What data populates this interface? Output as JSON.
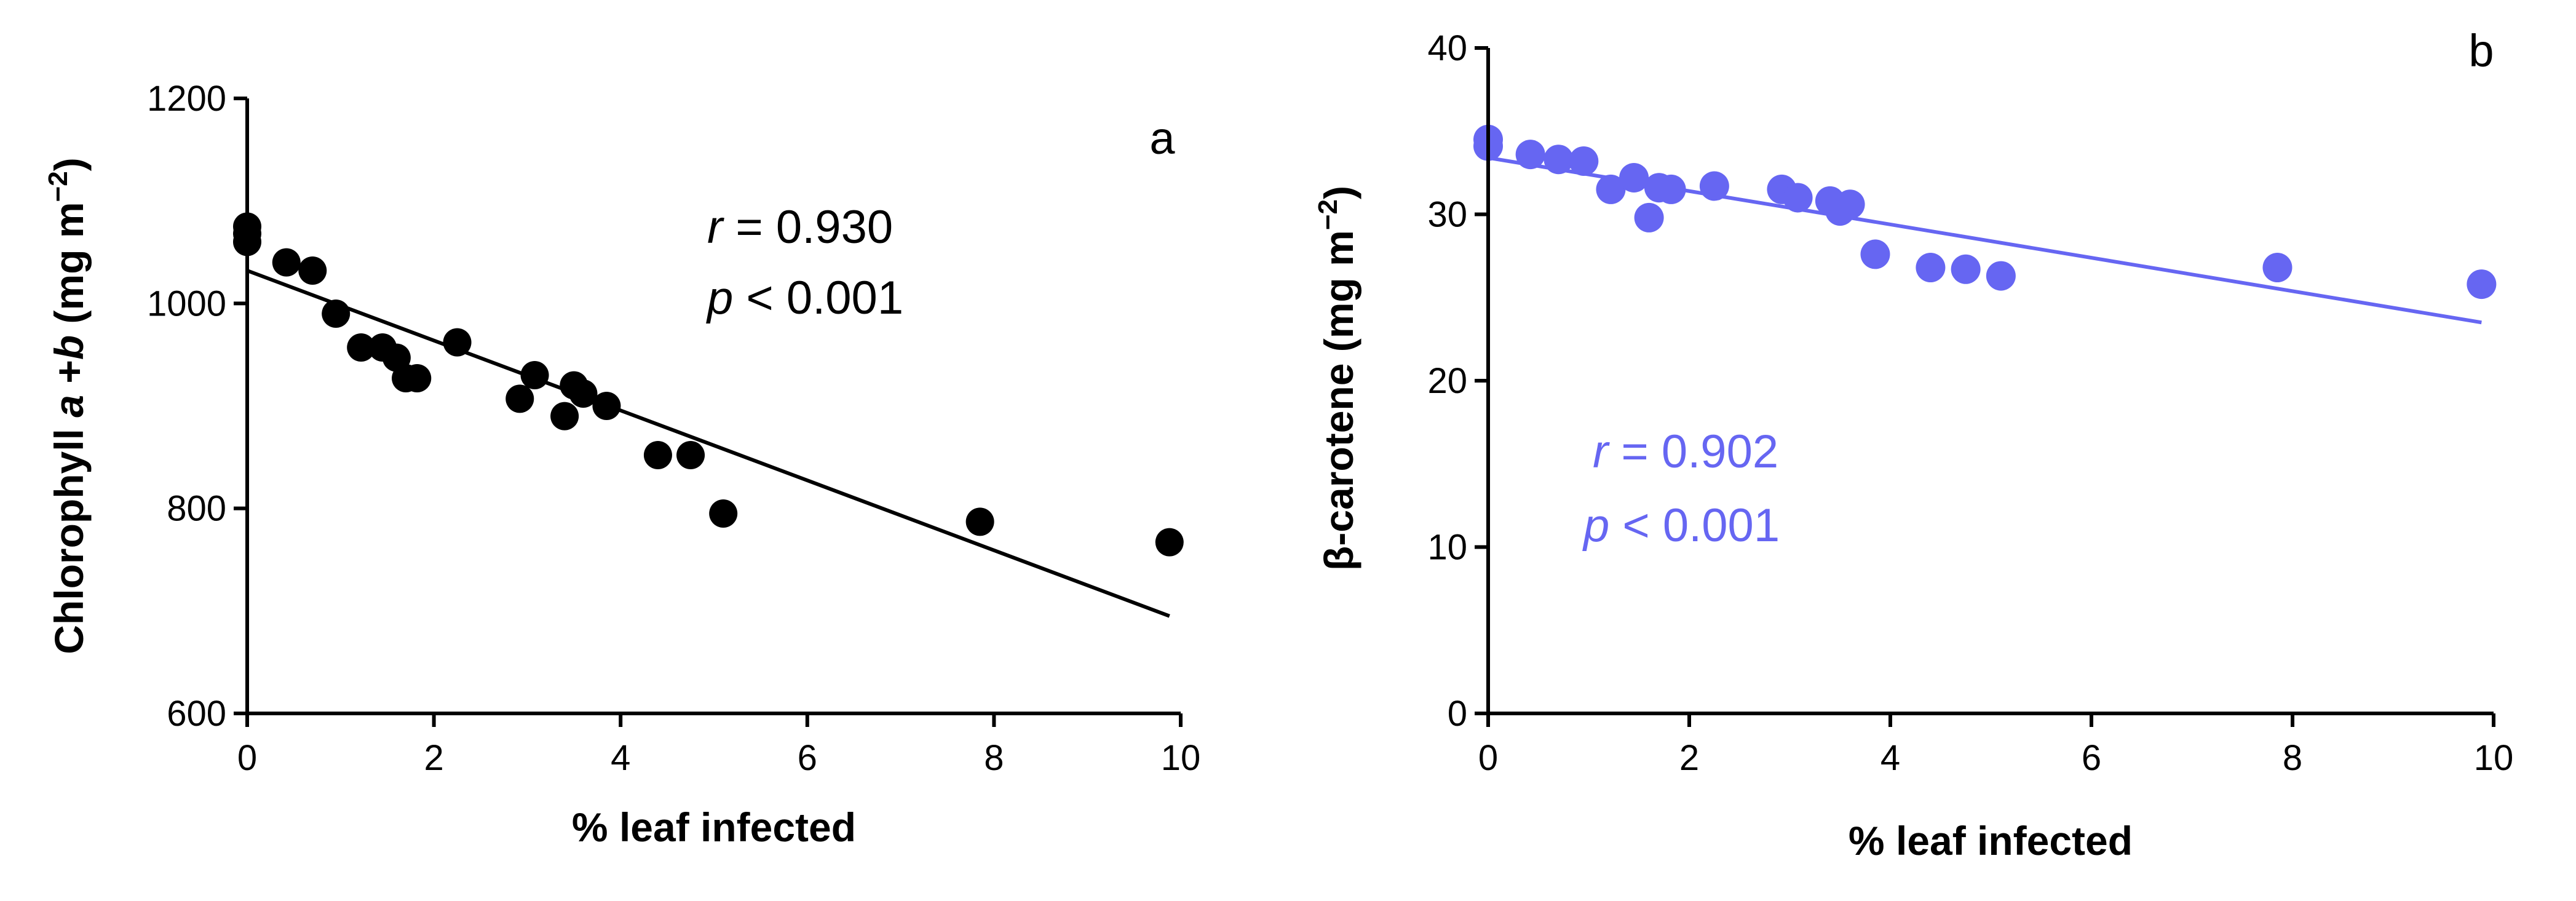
{
  "chart_data": [
    {
      "type": "scatter",
      "panel_label": "a",
      "xlabel": "% leaf infected",
      "ylabel_parts": {
        "pre": "Chlorophyll ",
        "a": "a",
        "mid": " +",
        "b": "b",
        "units": " (mg m",
        "sup": "−2",
        "close": ")"
      },
      "xlim": [
        0,
        10
      ],
      "ylim": [
        600,
        1200
      ],
      "xticks": [
        0,
        2,
        4,
        6,
        8,
        10
      ],
      "yticks": [
        600,
        800,
        1000,
        1200
      ],
      "color": "#000000",
      "stats": {
        "r_label": "r",
        "r_text": " = 0.930",
        "p_label": "p",
        "p_text": " < 0.001"
      },
      "x": [
        0.0,
        0.0,
        0.0,
        0.42,
        0.7,
        0.95,
        1.22,
        1.45,
        1.6,
        1.7,
        1.82,
        2.25,
        2.92,
        3.08,
        3.4,
        3.5,
        3.6,
        3.85,
        4.4,
        4.75,
        5.1,
        7.85,
        9.88
      ],
      "y": [
        1075,
        1068,
        1060,
        1040,
        1032,
        990,
        957,
        957,
        947,
        927,
        927,
        962,
        907,
        930,
        890,
        920,
        912,
        900,
        852,
        852,
        795,
        787,
        767
      ],
      "fit": {
        "x": [
          0,
          9.88
        ],
        "y": [
          1032,
          695
        ]
      }
    },
    {
      "type": "scatter",
      "panel_label": "b",
      "xlabel": "% leaf infected",
      "ylabel_parts": {
        "pre": "β-carotene",
        "units": " (mg m",
        "sup": "−2",
        "close": ")"
      },
      "xlim": [
        0,
        10
      ],
      "ylim": [
        0,
        40
      ],
      "xticks": [
        0,
        2,
        4,
        6,
        8,
        10
      ],
      "yticks": [
        0,
        10,
        20,
        30,
        40
      ],
      "color": "#6666f2",
      "stats": {
        "r_label": "r",
        "r_text": " = 0.902",
        "p_label": "p",
        "p_text": " < 0.001"
      },
      "x": [
        0.0,
        0.0,
        0.42,
        0.7,
        0.95,
        1.22,
        1.45,
        1.6,
        1.7,
        1.82,
        2.25,
        2.92,
        3.08,
        3.4,
        3.5,
        3.6,
        3.85,
        4.4,
        4.75,
        5.1,
        7.85,
        9.88
      ],
      "y": [
        34.5,
        34.1,
        33.6,
        33.3,
        33.2,
        31.5,
        32.2,
        29.8,
        31.6,
        31.5,
        31.7,
        31.5,
        31.0,
        30.8,
        30.2,
        30.6,
        27.6,
        26.8,
        26.7,
        26.3,
        26.8,
        25.8
      ],
      "fit": {
        "x": [
          0,
          9.88
        ],
        "y": [
          33.4,
          23.5
        ]
      }
    }
  ]
}
